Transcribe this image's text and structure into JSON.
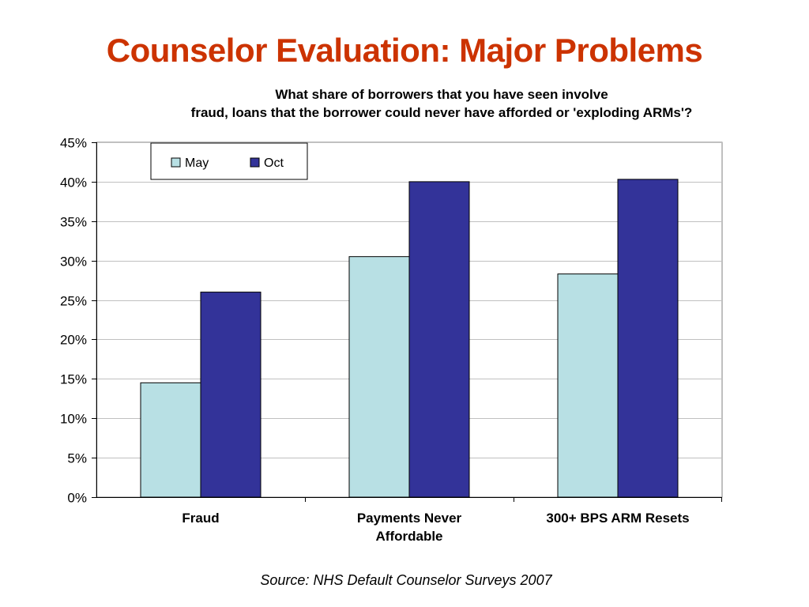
{
  "slide": {
    "title": "Counselor Evaluation: Major Problems",
    "source": "Source: NHS Default Counselor Surveys 2007"
  },
  "chart_data": {
    "type": "bar",
    "title_lines": [
      "What share of borrowers that you have seen involve",
      "fraud, loans that the borrower could never have afforded or 'exploding ARMs'?"
    ],
    "categories": [
      [
        "Fraud"
      ],
      [
        "Payments Never",
        "Affordable"
      ],
      [
        "300+ BPS ARM Resets"
      ]
    ],
    "series": [
      {
        "name": "May",
        "values": [
          14.5,
          30.5,
          28.3
        ],
        "color": "#b8e0e4"
      },
      {
        "name": "Oct",
        "values": [
          26.0,
          40.0,
          40.3
        ],
        "color": "#333399"
      }
    ],
    "ylim": [
      0,
      45
    ],
    "ytick_step": 5,
    "ytick_format": "percent",
    "grid": true,
    "legend_placement": "top-left"
  }
}
